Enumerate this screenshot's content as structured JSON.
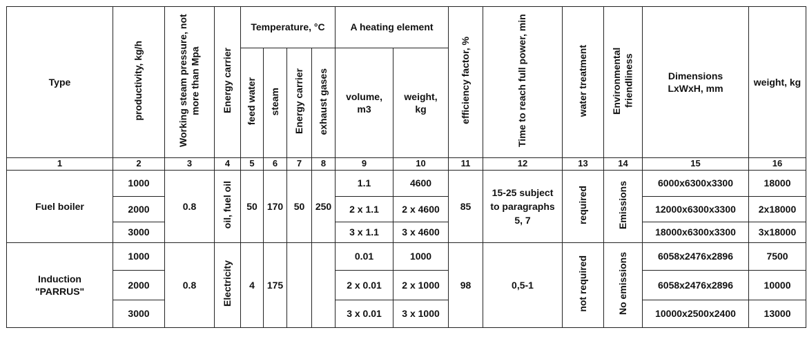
{
  "table": {
    "headers": {
      "type": "Type",
      "productivity": "productivity, kg/h",
      "pressure": "Working steam pressure, not more than Mpa",
      "carrier": "Energy carrier",
      "temperature": "Temperature, °C",
      "feed_water": "feed water",
      "steam": "steam",
      "temp_carrier": "Energy carrier",
      "exhaust": "exhaust gases",
      "heating_element": "A heating element",
      "volume": "volume, m3",
      "he_weight": "weight, kg",
      "efficiency": "efficiency factor, %",
      "time_full_power": "Time to reach full power, min",
      "water_treatment": "water treatment",
      "environmental": "Environmental friendliness",
      "dimensions": "Dimensions LxWxH, mm",
      "weight": "weight, kg"
    },
    "column_numbers": [
      "1",
      "2",
      "3",
      "4",
      "5",
      "6",
      "7",
      "8",
      "9",
      "10",
      "11",
      "12",
      "13",
      "14",
      "15",
      "16"
    ],
    "fuel_boiler": {
      "type": "Fuel boiler",
      "productivity": [
        "1000",
        "2000",
        "3000"
      ],
      "pressure": "0.8",
      "carrier": "oil, fuel oil",
      "feed_water": "50",
      "steam": "170",
      "temp_carrier": "50",
      "exhaust": "250",
      "volume": [
        "1.1",
        "2 x 1.1",
        "3 x 1.1"
      ],
      "he_weight": [
        "4600",
        "2 x 4600",
        "3 x 4600"
      ],
      "efficiency": "85",
      "time_full_power": "15-25 subject to paragraphs 5, 7",
      "water_treatment": "required",
      "environmental": "Emissions",
      "dimensions": [
        "6000x6300x3300",
        "12000x6300x3300",
        "18000x6300x3300"
      ],
      "weight": [
        "18000",
        "2x18000",
        "3x18000"
      ]
    },
    "induction": {
      "type": "Induction \"PARRUS\"",
      "productivity": [
        "1000",
        "2000",
        "3000"
      ],
      "pressure": "0.8",
      "carrier": "Electricity",
      "feed_water": "4",
      "steam": "175",
      "temp_carrier": "",
      "exhaust": "",
      "volume": [
        "0.01",
        "2 x 0.01",
        "3 x 0.01"
      ],
      "he_weight": [
        "1000",
        "2 x 1000",
        "3 x 1000"
      ],
      "efficiency": "98",
      "time_full_power": "0,5-1",
      "water_treatment": "not required",
      "environmental": "No emissions",
      "dimensions": [
        "6058x2476x2896",
        "6058x2476x2896",
        "10000x2500x2400"
      ],
      "weight": [
        "7500",
        "10000",
        "13000"
      ]
    }
  }
}
